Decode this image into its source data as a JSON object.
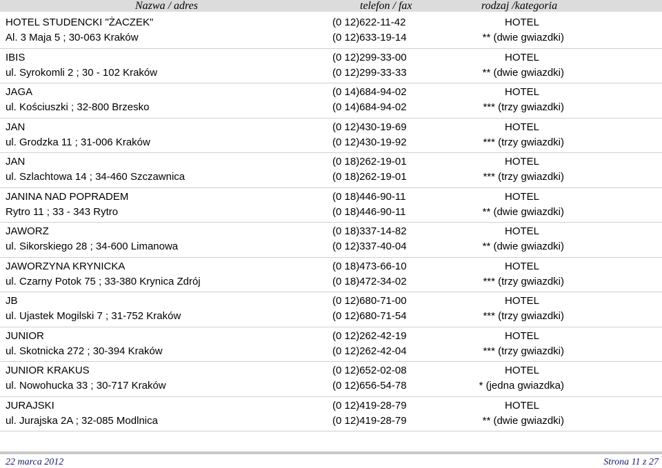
{
  "header": {
    "name_col": "Nazwa / adres",
    "phone_col": "telefon / fax",
    "type_col": "rodzaj /kategoria"
  },
  "entries": [
    {
      "name": "HOTEL STUDENCKI \"ŻACZEK\"",
      "address": "Al. 3 Maja 5 ;  30-063 Kraków",
      "phone": "(0 12)622-11-42",
      "fax": "(0 12)633-19-14",
      "type": "HOTEL",
      "category": "** (dwie gwiazdki)"
    },
    {
      "name": "IBIS",
      "address": "ul. Syrokomli 2 ;  30 - 102 Kraków",
      "phone": "(0 12)299-33-00",
      "fax": "(0 12)299-33-33",
      "type": "HOTEL",
      "category": "** (dwie gwiazdki)"
    },
    {
      "name": "JAGA",
      "address": "ul. Kościuszki ;  32-800 Brzesko",
      "phone": "(0 14)684-94-02",
      "fax": "(0 14)684-94-02",
      "type": "HOTEL",
      "category": "*** (trzy gwiazdki)"
    },
    {
      "name": "JAN",
      "address": "ul. Grodzka 11 ;  31-006 Kraków",
      "phone": "(0 12)430-19-69",
      "fax": "(0 12)430-19-92",
      "type": "HOTEL",
      "category": "*** (trzy gwiazdki)"
    },
    {
      "name": "JAN",
      "address": "ul. Szlachtowa 14 ;  34-460 Szczawnica",
      "phone": "(0 18)262-19-01",
      "fax": "(0 18)262-19-01",
      "type": "HOTEL",
      "category": "*** (trzy gwiazdki)"
    },
    {
      "name": "JANINA NAD POPRADEM",
      "address": "Rytro 11 ;  33 - 343 Rytro",
      "phone": "(0 18)446-90-11",
      "fax": "(0 18)446-90-11",
      "type": "HOTEL",
      "category": "** (dwie gwiazdki)"
    },
    {
      "name": "JAWORZ",
      "address": "ul. Sikorskiego 28 ;  34-600 Limanowa",
      "phone": "(0 18)337-14-82",
      "fax": "(0 12)337-40-04",
      "type": "HOTEL",
      "category": "** (dwie gwiazdki)"
    },
    {
      "name": "JAWORZYNA KRYNICKA",
      "address": "ul. Czarny Potok 75 ;  33-380 Krynica Zdrój",
      "phone": "(0 18)473-66-10",
      "fax": "(0 18)472-34-02",
      "type": "HOTEL",
      "category": "*** (trzy gwiazdki)"
    },
    {
      "name": "JB",
      "address": "ul. Ujastek Mogilski 7 ;  31-752 Kraków",
      "phone": "(0 12)680-71-00",
      "fax": "(0 12)680-71-54",
      "type": "HOTEL",
      "category": "*** (trzy gwiazdki)"
    },
    {
      "name": "JUNIOR",
      "address": "ul. Skotnicka 272 ;  30-394 Kraków",
      "phone": "(0 12)262-42-19",
      "fax": "(0 12)262-42-04",
      "type": "HOTEL",
      "category": "*** (trzy gwiazdki)"
    },
    {
      "name": "JUNIOR KRAKUS",
      "address": "ul. Nowohucka 33 ;  30-717 Kraków",
      "phone": "(0 12)652-02-08",
      "fax": "(0 12)656-54-78",
      "type": "HOTEL",
      "category": "* (jedna gwiazdka)"
    },
    {
      "name": "JURAJSKI",
      "address": "ul. Jurajska 2A ;  32-085 Modlnica",
      "phone": "(0 12)419-28-79",
      "fax": "(0 12)419-28-79",
      "type": "HOTEL",
      "category": "** (dwie gwiazdki)"
    }
  ],
  "footer": {
    "date": "22 marca 2012",
    "page": "Strona 11 z 27"
  }
}
